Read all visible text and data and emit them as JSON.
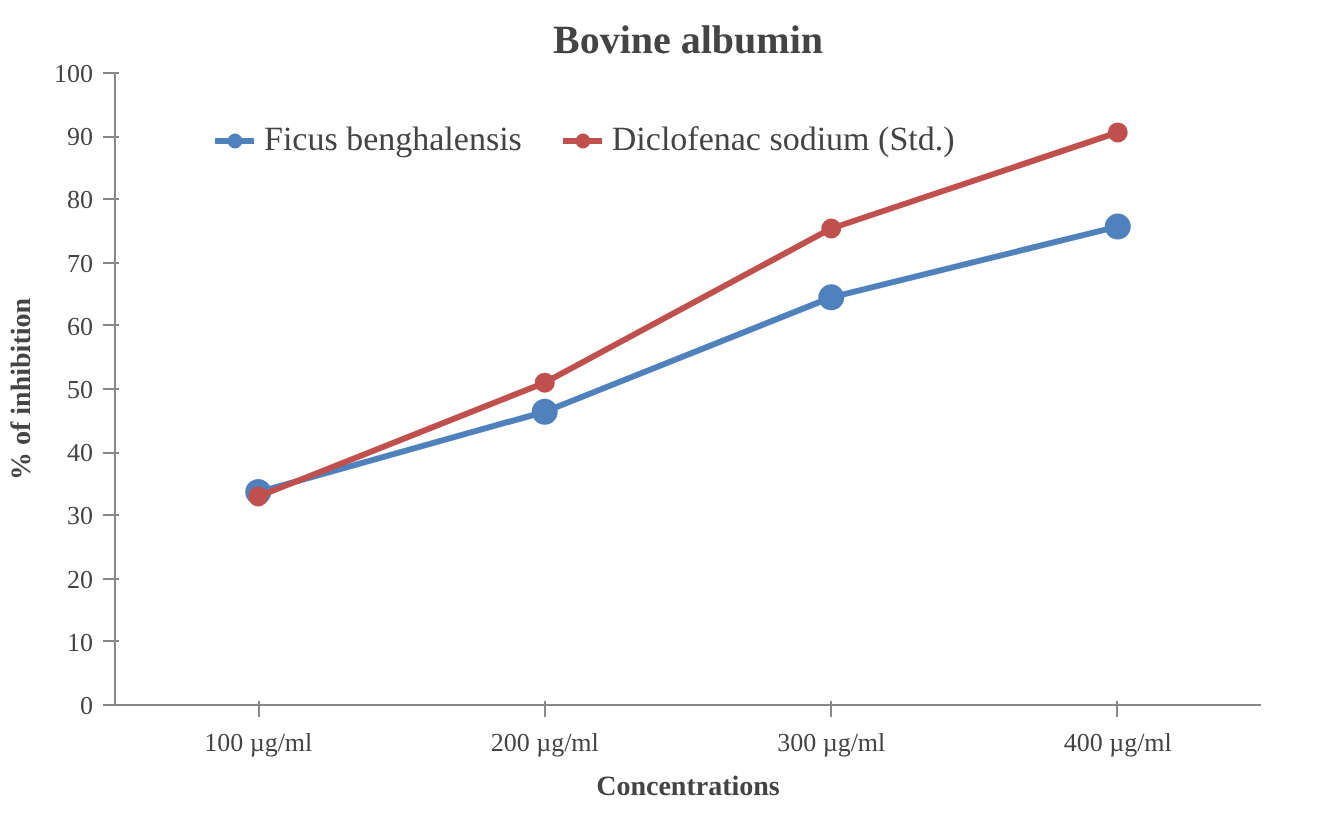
{
  "chart_data": {
    "type": "line",
    "title": "Bovine albumin",
    "xlabel": "Concentrations",
    "ylabel": "% of inhibition",
    "categories": [
      "100 µg/ml",
      "200 µg/ml",
      "300 µg/ml",
      "400 µg/ml"
    ],
    "series": [
      {
        "name": "Ficus benghalensis",
        "color": "#4f81bd",
        "values": [
          33.7,
          46.4,
          64.5,
          75.7
        ]
      },
      {
        "name": "Diclofenac sodium (Std.)",
        "color": "#c0504d",
        "values": [
          33,
          51,
          75.4,
          90.6
        ]
      }
    ],
    "ylim": [
      0,
      100
    ],
    "yticks": [
      0,
      10,
      20,
      30,
      40,
      50,
      60,
      70,
      80,
      90,
      100
    ],
    "grid": false,
    "legend": "top",
    "marker": "circle",
    "line_style": "solid"
  }
}
